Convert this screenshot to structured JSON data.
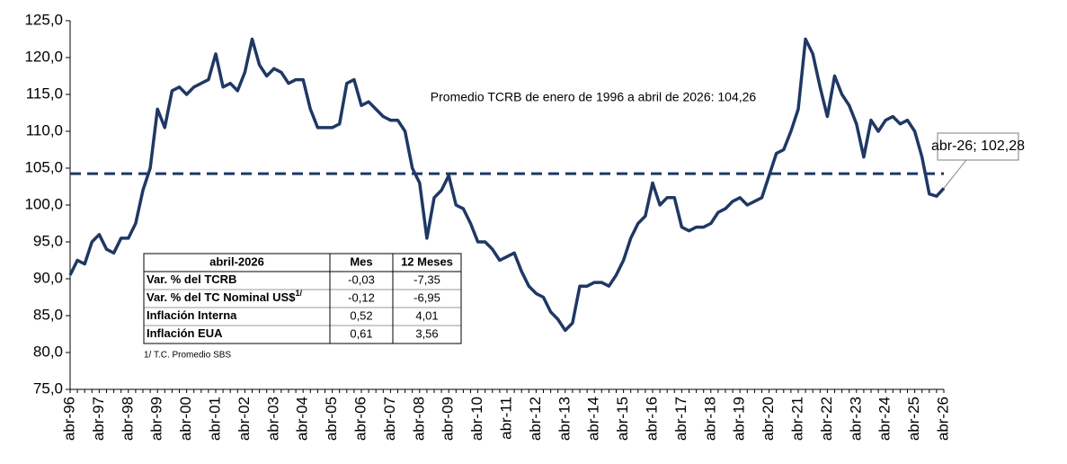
{
  "chart_data": {
    "type": "line",
    "categories": [
      "abr-96",
      null,
      null,
      null,
      "abr-97",
      null,
      null,
      null,
      "abr-98",
      null,
      null,
      null,
      "abr-99",
      null,
      null,
      null,
      "abr-00",
      null,
      null,
      null,
      "abr-01",
      null,
      null,
      null,
      "abr-02",
      null,
      null,
      null,
      "abr-03",
      null,
      null,
      null,
      "abr-04",
      null,
      null,
      null,
      "abr-05",
      null,
      null,
      null,
      "abr-06",
      null,
      null,
      null,
      "abr-07",
      null,
      null,
      null,
      "abr-08",
      null,
      null,
      null,
      "abr-09",
      null,
      null,
      null,
      "abr-10",
      null,
      null,
      null,
      "abr-11",
      null,
      null,
      null,
      "abr-12",
      null,
      null,
      null,
      "abr-13",
      null,
      null,
      null,
      "abr-14",
      null,
      null,
      null,
      "abr-15",
      null,
      null,
      null,
      "abr-16",
      null,
      null,
      null,
      "abr-17",
      null,
      null,
      null,
      "abr-18",
      null,
      null,
      null,
      "abr-19",
      null,
      null,
      null,
      "abr-20",
      null,
      null,
      null,
      "abr-21",
      null,
      null,
      null,
      "abr-22",
      null,
      null,
      null,
      "abr-23",
      null,
      null,
      null,
      "abr-24",
      null,
      null,
      null,
      "abr-25",
      null,
      null,
      null,
      "abr-26"
    ],
    "values": [
      90.5,
      92.5,
      92,
      95,
      96,
      94,
      93.5,
      95.5,
      95.5,
      97.5,
      102,
      105,
      113,
      110.5,
      115.5,
      116,
      115,
      116,
      116.5,
      117,
      120.5,
      116,
      116.5,
      115.5,
      118,
      122.5,
      119,
      117.5,
      118.5,
      118,
      116.5,
      117,
      117,
      113,
      110.5,
      110.5,
      110.5,
      111,
      116.5,
      117,
      113.5,
      114,
      113,
      112,
      111.5,
      111.5,
      110,
      105,
      103,
      95.5,
      101,
      102,
      104,
      100,
      99.5,
      97.5,
      95,
      95,
      94,
      92.5,
      93,
      93.5,
      91,
      89,
      88,
      87.5,
      85.5,
      84.5,
      83,
      84,
      89,
      89,
      89.5,
      89.5,
      89,
      90.5,
      92.5,
      95.5,
      97.5,
      98.5,
      103,
      100,
      101,
      101,
      97,
      96.5,
      97,
      97,
      97.5,
      99,
      99.5,
      100.5,
      101,
      100,
      100.5,
      101,
      104,
      107,
      107.5,
      110,
      113,
      122.5,
      120.5,
      116,
      112,
      117.5,
      115,
      113.5,
      111,
      106.5,
      111.5,
      110,
      111.5,
      112,
      111,
      111.5,
      110,
      106.5,
      101.5,
      101.2,
      102.28
    ],
    "color": "#1f3864",
    "ylim": [
      75,
      125
    ],
    "yticks": [
      {
        "value": 75,
        "label": "75,0"
      },
      {
        "value": 80,
        "label": "80,0"
      },
      {
        "value": 85,
        "label": "85,0"
      },
      {
        "value": 90,
        "label": "90,0"
      },
      {
        "value": 95,
        "label": "95,0"
      },
      {
        "value": 100,
        "label": "100,0"
      },
      {
        "value": 105,
        "label": "105,0"
      },
      {
        "value": 110,
        "label": "110,0"
      },
      {
        "value": 115,
        "label": "115,0"
      },
      {
        "value": 120,
        "label": "120,0"
      },
      {
        "value": 125,
        "label": "125,0"
      }
    ],
    "average": {
      "value": 104.26,
      "label": "Promedio TCRB de enero de 1996 a abril de 2026: 104,26"
    },
    "callout": {
      "value": 102.28,
      "label": "abr-26; 102,28"
    }
  },
  "table": {
    "header": [
      "abril-2026",
      "Mes",
      "12 Meses"
    ],
    "rows": [
      [
        {
          "text": "Var. % del TCRB"
        },
        "-0,03",
        "-7,35"
      ],
      [
        {
          "text": "Var. % del TC Nominal US$",
          "sup": "1/"
        },
        "-0,12",
        "-6,95"
      ],
      [
        {
          "text": "Inflación Interna"
        },
        "0,52",
        "4,01"
      ],
      [
        {
          "text": "Inflación EUA"
        },
        "0,61",
        "3,56"
      ]
    ],
    "footnote": "1/ T.C. Promedio SBS"
  }
}
